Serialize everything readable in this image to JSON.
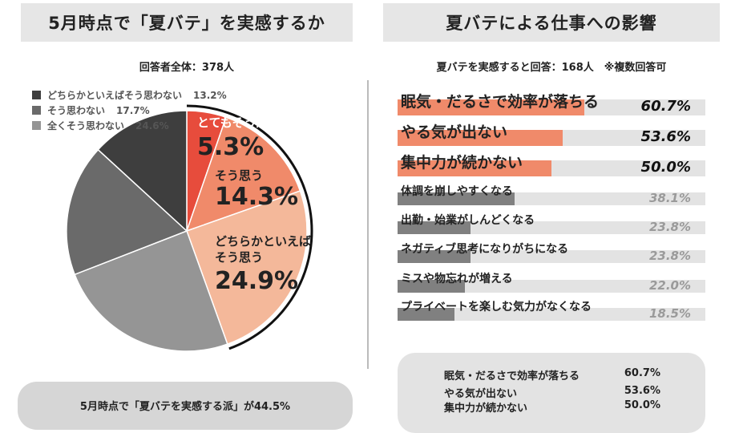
{
  "left_title": "5月時点で「夏バテ」を実感するか",
  "right_title": "夏バテによる仕事への影響",
  "left_subtitle": "回答者全体：378人",
  "right_subtitle": "夏バテを実感すると回答：168人　※複数回答可",
  "bottom_summary": "5月時点で「夏バテを実感する派」が44.5%",
  "legend": [
    {
      "label": "どちらかといえばそう思わない",
      "value": "13.2%",
      "color": "#3e3e3e"
    },
    {
      "label": "そう思わない",
      "value": "17.7%",
      "color": "#6a6a6a"
    },
    {
      "label": "全くそう思わない",
      "value": "24.6%",
      "color": "#959595"
    }
  ],
  "pie_labels": {
    "totemo_label": "とてもそう思う",
    "totemo_value": "5.3%",
    "sou_label": "そう思う",
    "sou_value": "14.3%",
    "dochira_label1": "どちらかといえば",
    "dochira_label2": "そう思う",
    "dochira_value": "24.9%"
  },
  "summary_rows": [
    {
      "label": "眠気・だるさで効率が落ちる",
      "value": "60.7%"
    },
    {
      "label": "やる気が出ない",
      "value": "53.6%"
    },
    {
      "label": "集中力が続かない",
      "value": "50.0%"
    }
  ],
  "chart_data": [
    {
      "type": "pie",
      "title": "5月時点で「夏バテ」を実感するか",
      "subtitle": "回答者全体：378人",
      "categories": [
        "とてもそう思う",
        "そう思う",
        "どちらかといえばそう思う",
        "全くそう思わない",
        "そう思わない",
        "どちらかといえばそう思わない"
      ],
      "values": [
        5.3,
        14.3,
        24.9,
        24.6,
        17.7,
        13.2
      ],
      "colors": [
        "#e74c3c",
        "#f08a6a",
        "#f4b89a",
        "#959595",
        "#6a6a6a",
        "#3e3e3e"
      ]
    },
    {
      "type": "bar",
      "title": "夏バテによる仕事への影響",
      "subtitle": "夏バテを実感すると回答：168人　※複数回答可",
      "categories": [
        "眠気・だるさで効率が落ちる",
        "やる気が出ない",
        "集中力が続かない",
        "体調を崩しやすくなる",
        "出勤・始業がしんどくなる",
        "ネガティブ思考になりがちになる",
        "ミスや物忘れが増える",
        "プライベートを楽しむ気力がなくなる"
      ],
      "values": [
        60.7,
        53.6,
        50.0,
        38.1,
        23.8,
        23.8,
        22.0,
        18.5
      ],
      "value_labels": [
        "60.7%",
        "53.6%",
        "50.0%",
        "38.1%",
        "23.8%",
        "23.8%",
        "22.0%",
        "18.5%"
      ],
      "highlight_color": "#f08a6a",
      "normal_color": "#808080",
      "track_color": "#e3e3e3"
    }
  ]
}
